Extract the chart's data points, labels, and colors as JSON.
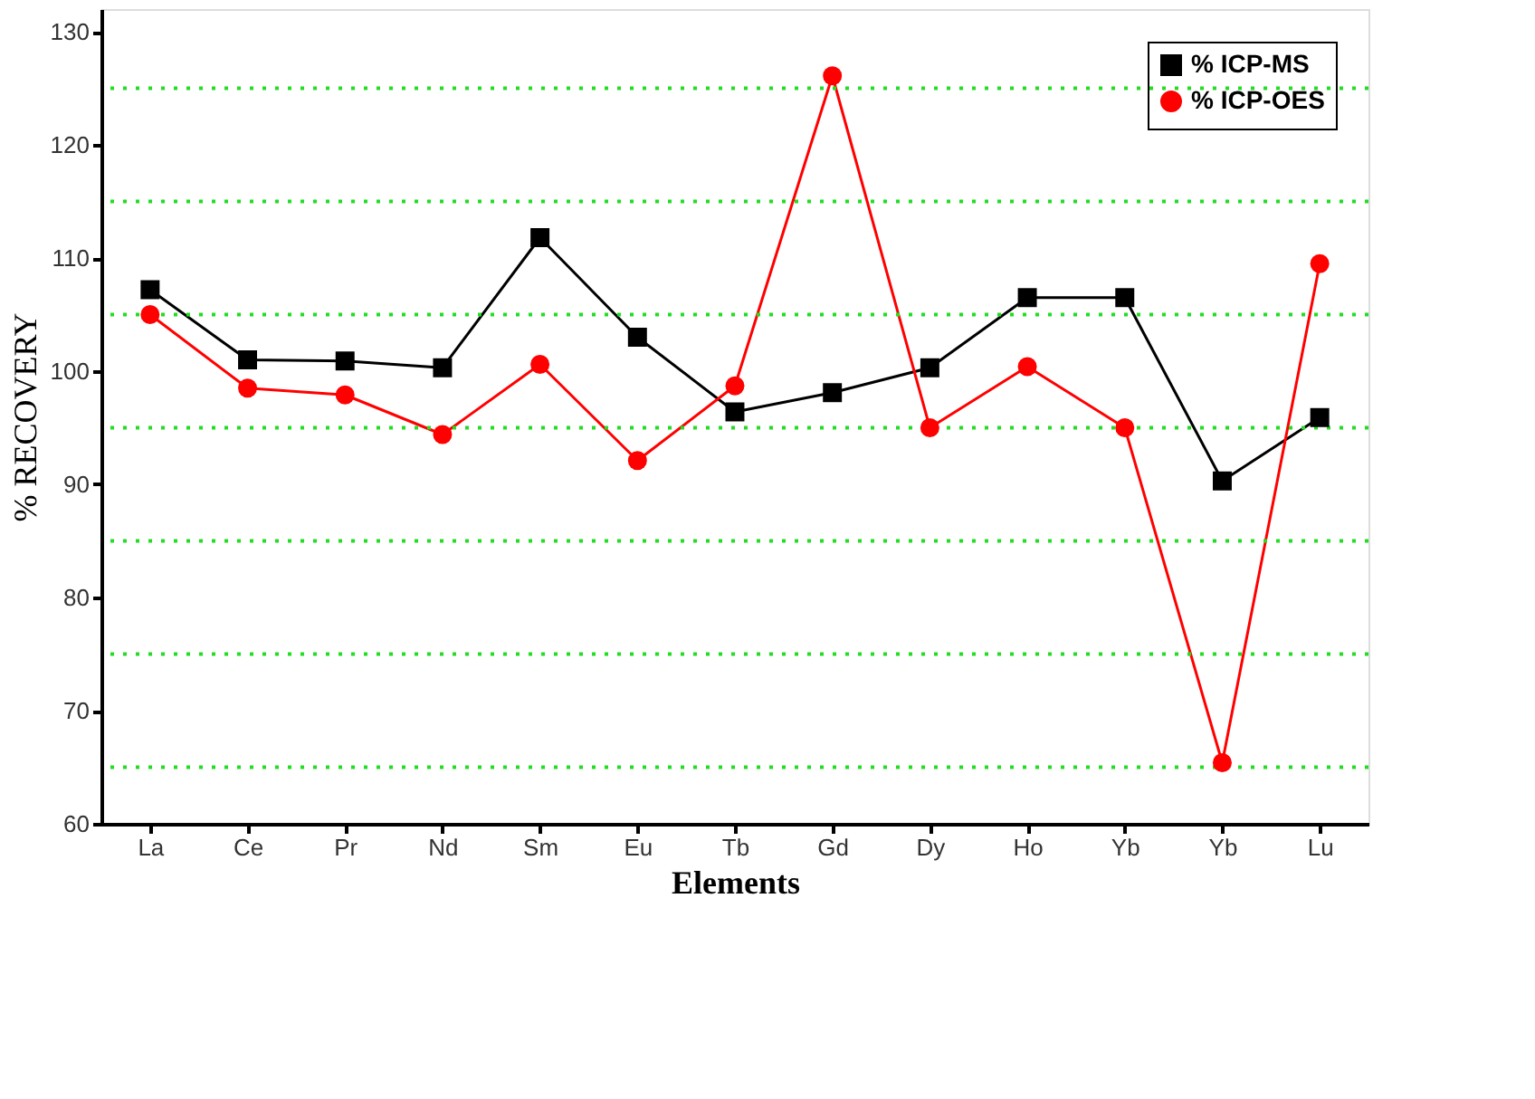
{
  "chart_data": {
    "type": "line",
    "xlabel": "Elements",
    "ylabel": "% RECOVERY",
    "categories": [
      "La",
      "Ce",
      "Pr",
      "Nd",
      "Sm",
      "Eu",
      "Tb",
      "Gd",
      "Dy",
      "Ho",
      "Yb",
      "Yb",
      "Lu"
    ],
    "series": [
      {
        "name": "% ICP-MS",
        "color": "#000000",
        "marker": "square",
        "values": [
          107.2,
          101.0,
          100.9,
          100.3,
          111.8,
          103.0,
          96.4,
          98.1,
          100.3,
          106.5,
          106.5,
          90.3,
          95.9
        ]
      },
      {
        "name": "% ICP-OES",
        "color": "#ff0000",
        "marker": "circle",
        "values": [
          105.0,
          98.5,
          97.9,
          94.4,
          100.6,
          92.1,
          98.7,
          126.1,
          95.0,
          100.4,
          95.0,
          65.4,
          109.5
        ]
      }
    ],
    "ylim": [
      60,
      132
    ],
    "yticks": [
      60,
      {
        "value": 65,
        "label": null
      },
      70,
      {
        "value": 75,
        "label": null
      },
      80,
      {
        "value": 85,
        "label": null
      },
      90,
      {
        "value": 95,
        "label": null
      },
      100,
      {
        "value": 105,
        "label": null
      },
      110,
      {
        "value": 115,
        "label": null
      },
      120,
      {
        "value": 125,
        "label": null
      },
      130
    ],
    "grid": true,
    "legend": "top right",
    "line_style": "solid"
  }
}
